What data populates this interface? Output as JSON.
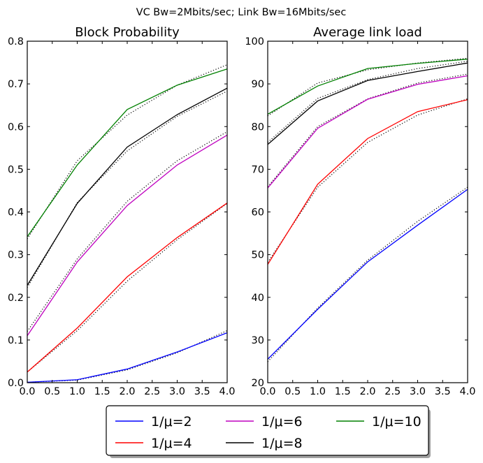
{
  "suptitle": "VC Bw=2Mbits/sec; Link Bw=16Mbits/sec",
  "colors": {
    "mu2": "#0000ff",
    "mu4": "#ff0000",
    "mu6": "#bf00bf",
    "mu8": "#000000",
    "mu10": "#008000",
    "reference": "#000000"
  },
  "legend": {
    "placement": "bottom-center",
    "columns": 3,
    "entries": [
      "1/μ=2",
      "1/μ=4",
      "1/μ=6",
      "1/μ=8",
      "1/μ=10"
    ]
  },
  "chart_data": [
    {
      "type": "line",
      "title": "Block Probability",
      "xlabel": "",
      "ylabel": "",
      "xlim": [
        0.0,
        4.0
      ],
      "ylim": [
        0.0,
        0.8
      ],
      "xticks": [
        "0.0",
        "0.5",
        "1.0",
        "1.5",
        "2.0",
        "2.5",
        "3.0",
        "3.5",
        "4.0"
      ],
      "yticks": [
        "0.0",
        "0.1",
        "0.2",
        "0.3",
        "0.4",
        "0.5",
        "0.6",
        "0.7",
        "0.8"
      ],
      "x": [
        0,
        1,
        2,
        3,
        4
      ],
      "series": [
        {
          "name": "1/μ=2",
          "color_key": "mu2",
          "values": [
            0.001,
            0.007,
            0.032,
            0.072,
            0.117
          ],
          "reference": [
            0.001,
            0.006,
            0.03,
            0.07,
            0.122
          ]
        },
        {
          "name": "1/μ=4",
          "color_key": "mu4",
          "values": [
            0.025,
            0.128,
            0.248,
            0.34,
            0.421
          ],
          "reference": [
            0.025,
            0.122,
            0.238,
            0.335,
            0.42
          ]
        },
        {
          "name": "1/μ=6",
          "color_key": "mu6",
          "values": [
            0.11,
            0.283,
            0.415,
            0.51,
            0.58
          ],
          "reference": [
            0.12,
            0.29,
            0.425,
            0.52,
            0.588
          ]
        },
        {
          "name": "1/μ=8",
          "color_key": "mu8",
          "values": [
            0.228,
            0.42,
            0.552,
            0.628,
            0.69
          ],
          "reference": [
            0.223,
            0.422,
            0.543,
            0.624,
            0.683
          ]
        },
        {
          "name": "1/μ=10",
          "color_key": "mu10",
          "values": [
            0.342,
            0.51,
            0.64,
            0.697,
            0.735
          ],
          "reference": [
            0.337,
            0.52,
            0.627,
            0.697,
            0.745
          ]
        }
      ]
    },
    {
      "type": "line",
      "title": "Average link load",
      "xlabel": "",
      "ylabel": "",
      "xlim": [
        0.0,
        4.0
      ],
      "ylim": [
        20,
        100
      ],
      "xticks": [
        "0.0",
        "0.5",
        "1.0",
        "1.5",
        "2.0",
        "2.5",
        "3.0",
        "3.5",
        "4.0"
      ],
      "yticks": [
        "20",
        "30",
        "40",
        "50",
        "60",
        "70",
        "80",
        "90",
        "100"
      ],
      "x": [
        0,
        1,
        2,
        3,
        4
      ],
      "series": [
        {
          "name": "1/μ=2",
          "color_key": "mu2",
          "values": [
            25.5,
            37.2,
            48.3,
            56.9,
            65.3
          ],
          "reference": [
            24.9,
            37.5,
            48.7,
            57.8,
            65.8
          ]
        },
        {
          "name": "1/μ=4",
          "color_key": "mu4",
          "values": [
            47.7,
            66.5,
            77.2,
            83.5,
            86.3
          ],
          "reference": [
            48.2,
            65.8,
            76.3,
            82.7,
            86.5
          ]
        },
        {
          "name": "1/μ=6",
          "color_key": "mu6",
          "values": [
            65.6,
            79.6,
            86.4,
            89.9,
            91.9
          ],
          "reference": [
            65.9,
            80.0,
            86.5,
            90.2,
            92.3
          ]
        },
        {
          "name": "1/μ=8",
          "color_key": "mu8",
          "values": [
            75.8,
            86.0,
            90.8,
            92.9,
            94.9
          ],
          "reference": [
            76.3,
            86.6,
            91.0,
            93.6,
            95.3
          ]
        },
        {
          "name": "1/μ=10",
          "color_key": "mu10",
          "values": [
            82.9,
            89.5,
            93.6,
            94.8,
            95.8
          ],
          "reference": [
            82.5,
            90.2,
            93.3,
            94.9,
            96.0
          ]
        }
      ]
    }
  ]
}
